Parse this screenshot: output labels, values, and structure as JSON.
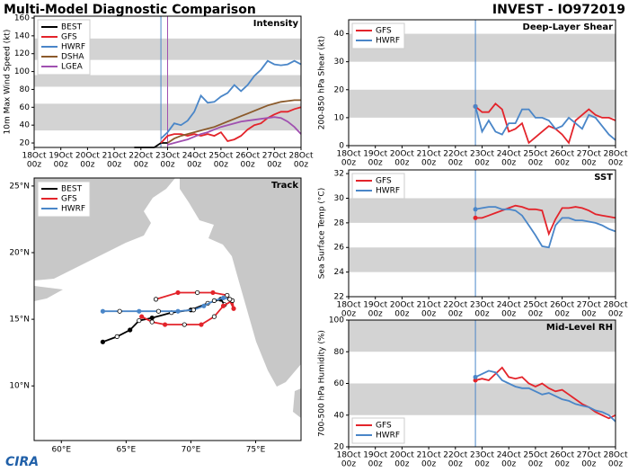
{
  "title": "Multi-Model Diagnostic Comparison",
  "storm": "INVEST - IO972019",
  "logo": "CIRA",
  "chart_data": [
    {
      "type": "line",
      "title": "Intensity",
      "ylabel": "10m Max Wind Speed (kt)",
      "legend": "upper left",
      "grid": false,
      "x": [
        "21Oct 18z",
        "22Oct 00z",
        "22Oct 06z",
        "22Oct 12z",
        "22Oct 18z",
        "23Oct 00z",
        "23Oct 06z",
        "23Oct 12z",
        "23Oct 18z",
        "24Oct 00z",
        "24Oct 06z",
        "24Oct 12z",
        "24Oct 18z",
        "25Oct 00z",
        "25Oct 06z",
        "25Oct 12z",
        "25Oct 18z",
        "26Oct 00z",
        "26Oct 06z",
        "26Oct 12z",
        "26Oct 18z",
        "27Oct 00z",
        "27Oct 06z",
        "27Oct 12z",
        "27Oct 18z",
        "28Oct 00z"
      ],
      "series": [
        {
          "name": "BEST",
          "color": "#000000",
          "values": [
            15,
            15,
            15,
            15,
            20,
            20,
            null,
            null,
            null,
            null,
            null,
            null,
            null,
            null,
            null,
            null,
            null,
            null,
            null,
            null,
            null,
            null,
            null,
            null,
            null,
            null
          ]
        },
        {
          "name": "GFS",
          "color": "#e3242b",
          "values": [
            null,
            null,
            null,
            null,
            20,
            28,
            30,
            30,
            28,
            30,
            28,
            30,
            28,
            32,
            22,
            24,
            28,
            35,
            40,
            42,
            48,
            52,
            55,
            55,
            58,
            60
          ]
        },
        {
          "name": "HWRF",
          "color": "#4a86c8",
          "values": [
            null,
            null,
            null,
            null,
            25,
            32,
            42,
            40,
            45,
            55,
            73,
            65,
            66,
            72,
            76,
            85,
            78,
            85,
            95,
            102,
            112,
            108,
            107,
            108,
            112,
            108
          ]
        },
        {
          "name": "DSHA",
          "color": "#8b5a2b",
          "values": [
            null,
            null,
            null,
            null,
            null,
            20,
            25,
            28,
            30,
            32,
            34,
            36,
            38,
            41,
            44,
            47,
            50,
            53,
            56,
            59,
            62,
            64,
            66,
            67,
            68,
            68
          ]
        },
        {
          "name": "LGEA",
          "color": "#a050b0",
          "values": [
            null,
            null,
            null,
            null,
            null,
            18,
            20,
            22,
            24,
            27,
            30,
            32,
            35,
            38,
            40,
            42,
            44,
            45,
            46,
            47,
            48,
            49,
            48,
            44,
            38,
            30
          ]
        }
      ],
      "vlines": [
        {
          "x": "22Oct 18z",
          "color": "#4a86c8"
        },
        {
          "x": "23Oct 00z",
          "color": "#a050b0"
        }
      ],
      "bands": [
        [
          34,
          64
        ],
        [
          83,
          96
        ],
        [
          113,
          137
        ]
      ],
      "xlim": [
        "18Oct 00z",
        "28Oct 00z"
      ],
      "xticks": [
        [
          "18Oct",
          "00z"
        ],
        [
          "19Oct",
          "00z"
        ],
        [
          "20Oct",
          "00z"
        ],
        [
          "21Oct",
          "00z"
        ],
        [
          "22Oct",
          "00z"
        ],
        [
          "23Oct",
          "00z"
        ],
        [
          "24Oct",
          "00z"
        ],
        [
          "25Oct",
          "00z"
        ],
        [
          "26Oct",
          "00z"
        ],
        [
          "27Oct",
          "00z"
        ],
        [
          "28Oct",
          "00z"
        ]
      ],
      "ylim": [
        15,
        162
      ],
      "yticks": [
        20,
        40,
        60,
        80,
        100,
        120,
        140,
        160
      ]
    },
    {
      "type": "track",
      "title": "Track",
      "legend": "upper left",
      "series": [
        {
          "name": "BEST",
          "color": "#000000",
          "lon": [
            63.2,
            64.3,
            65.3,
            66.0,
            67.0,
            68.5,
            70.0,
            71.3,
            72.3,
            72.6
          ],
          "lat": [
            13.3,
            13.7,
            14.2,
            14.9,
            15.1,
            15.5,
            15.7,
            16.2,
            16.5,
            16.1
          ]
        },
        {
          "name": "GFS",
          "color": "#e3242b",
          "lon": [
            66.2,
            67.0,
            68.0,
            69.5,
            70.8,
            71.8,
            72.5,
            73.2,
            73.3,
            72.8,
            71.7,
            70.5,
            69.0,
            67.3
          ],
          "lat": [
            15.2,
            14.8,
            14.6,
            14.6,
            14.6,
            15.2,
            16.0,
            16.4,
            15.8,
            16.8,
            17.0,
            17.0,
            17.0,
            16.5
          ]
        },
        {
          "name": "HWRF",
          "color": "#4a86c8",
          "lon": [
            63.2,
            64.5,
            66.0,
            67.5,
            69.0,
            70.2,
            71.0,
            71.8,
            72.5,
            73.0
          ],
          "lat": [
            15.6,
            15.6,
            15.6,
            15.6,
            15.6,
            15.7,
            16.0,
            16.4,
            16.6,
            16.5
          ]
        }
      ],
      "xlim": [
        57.9,
        78.5
      ],
      "ylim": [
        5.9,
        25.6
      ],
      "xticks": [
        {
          "value": 60,
          "label": "60°E"
        },
        {
          "value": 65,
          "label": "65°E"
        },
        {
          "value": 70,
          "label": "70°E"
        },
        {
          "value": 75,
          "label": "75°E"
        }
      ],
      "yticks": [
        {
          "value": 10,
          "label": "10°N"
        },
        {
          "value": 15,
          "label": "15°N"
        },
        {
          "value": 20,
          "label": "20°N"
        },
        {
          "value": 25,
          "label": "25°N"
        }
      ]
    },
    {
      "type": "line",
      "title": "Deep-Layer Shear",
      "ylabel": "200-850 hPa Shear (kt)",
      "legend": "upper left",
      "x": [
        "22Oct 18z",
        "23Oct 00z",
        "23Oct 06z",
        "23Oct 12z",
        "23Oct 18z",
        "24Oct 00z",
        "24Oct 06z",
        "24Oct 12z",
        "24Oct 18z",
        "25Oct 00z",
        "25Oct 06z",
        "25Oct 12z",
        "25Oct 18z",
        "26Oct 00z",
        "26Oct 06z",
        "26Oct 12z",
        "26Oct 18z",
        "27Oct 00z",
        "27Oct 06z",
        "27Oct 12z",
        "27Oct 18z",
        "28Oct 00z"
      ],
      "series": [
        {
          "name": "GFS",
          "color": "#e3242b",
          "values": [
            14,
            12,
            12,
            15,
            13,
            5,
            6,
            8,
            1,
            3,
            5,
            7,
            6,
            4,
            1,
            9,
            11,
            13,
            11,
            10,
            10,
            9
          ]
        },
        {
          "name": "HWRF",
          "color": "#4a86c8",
          "values": [
            14,
            5,
            9,
            5,
            4,
            8,
            8,
            13,
            13,
            10,
            10,
            9,
            6,
            7,
            10,
            8,
            6,
            11,
            10,
            7,
            4,
            2
          ]
        }
      ],
      "vlines": [
        {
          "x": "22Oct 18z",
          "color": "#4a86c8"
        }
      ],
      "bands": [
        [
          10,
          20
        ],
        [
          30,
          40
        ]
      ],
      "xlim": [
        "18Oct 00z",
        "28Oct 00z"
      ],
      "xticks": [
        [
          "18Oct",
          "00z"
        ],
        [
          "19Oct",
          "00z"
        ],
        [
          "20Oct",
          "00z"
        ],
        [
          "21Oct",
          "00z"
        ],
        [
          "22Oct",
          "00z"
        ],
        [
          "23Oct",
          "00z"
        ],
        [
          "24Oct",
          "00z"
        ],
        [
          "25Oct",
          "00z"
        ],
        [
          "26Oct",
          "00z"
        ],
        [
          "27Oct",
          "00z"
        ],
        [
          "28Oct",
          "00z"
        ]
      ],
      "ylim": [
        0,
        45
      ],
      "yticks": [
        0,
        10,
        20,
        30,
        40
      ]
    },
    {
      "type": "line",
      "title": "SST",
      "ylabel": "Sea Surface Temp (°C)",
      "legend": "upper left",
      "x": [
        "22Oct 18z",
        "23Oct 00z",
        "23Oct 06z",
        "23Oct 12z",
        "23Oct 18z",
        "24Oct 00z",
        "24Oct 06z",
        "24Oct 12z",
        "24Oct 18z",
        "25Oct 00z",
        "25Oct 06z",
        "25Oct 12z",
        "25Oct 18z",
        "26Oct 00z",
        "26Oct 06z",
        "26Oct 12z",
        "26Oct 18z",
        "27Oct 00z",
        "27Oct 06z",
        "27Oct 12z",
        "27Oct 18z",
        "28Oct 00z"
      ],
      "series": [
        {
          "name": "GFS",
          "color": "#e3242b",
          "values": [
            28.4,
            28.4,
            28.6,
            28.8,
            29.0,
            29.2,
            29.4,
            29.3,
            29.1,
            29.1,
            29.0,
            27.1,
            28.3,
            29.2,
            29.2,
            29.3,
            29.2,
            29.0,
            28.7,
            28.6,
            28.5,
            28.4
          ]
        },
        {
          "name": "HWRF",
          "color": "#4a86c8",
          "values": [
            29.1,
            29.2,
            29.3,
            29.3,
            29.1,
            29.1,
            29.0,
            28.6,
            27.8,
            27.0,
            26.1,
            26.0,
            27.8,
            28.4,
            28.4,
            28.2,
            28.2,
            28.1,
            28.0,
            27.8,
            27.5,
            27.3
          ]
        }
      ],
      "vlines": [
        {
          "x": "22Oct 18z",
          "color": "#4a86c8"
        }
      ],
      "bands": [
        [
          24,
          26
        ],
        [
          28,
          30
        ]
      ],
      "xlim": [
        "18Oct 00z",
        "28Oct 00z"
      ],
      "xticks": [
        [
          "18Oct",
          "00z"
        ],
        [
          "19Oct",
          "00z"
        ],
        [
          "20Oct",
          "00z"
        ],
        [
          "21Oct",
          "00z"
        ],
        [
          "22Oct",
          "00z"
        ],
        [
          "23Oct",
          "00z"
        ],
        [
          "24Oct",
          "00z"
        ],
        [
          "25Oct",
          "00z"
        ],
        [
          "26Oct",
          "00z"
        ],
        [
          "27Oct",
          "00z"
        ],
        [
          "28Oct",
          "00z"
        ]
      ],
      "ylim": [
        22,
        32.3
      ],
      "yticks": [
        22,
        24,
        26,
        28,
        30,
        32
      ]
    },
    {
      "type": "line",
      "title": "Mid-Level RH",
      "ylabel": "700-500 hPa Humidity (%)",
      "legend": "lower left",
      "x": [
        "22Oct 18z",
        "23Oct 00z",
        "23Oct 06z",
        "23Oct 12z",
        "23Oct 18z",
        "24Oct 00z",
        "24Oct 06z",
        "24Oct 12z",
        "24Oct 18z",
        "25Oct 00z",
        "25Oct 06z",
        "25Oct 12z",
        "25Oct 18z",
        "26Oct 00z",
        "26Oct 06z",
        "26Oct 12z",
        "26Oct 18z",
        "27Oct 00z",
        "27Oct 06z",
        "27Oct 12z",
        "27Oct 18z",
        "28Oct 00z"
      ],
      "series": [
        {
          "name": "GFS",
          "color": "#e3242b",
          "values": [
            62,
            63,
            62,
            66,
            70,
            64,
            63,
            64,
            60,
            58,
            60,
            57,
            55,
            56,
            53,
            50,
            47,
            45,
            42,
            40,
            38,
            40
          ]
        },
        {
          "name": "HWRF",
          "color": "#4a86c8",
          "values": [
            64,
            66,
            68,
            67,
            62,
            60,
            58,
            57,
            57,
            55,
            53,
            54,
            52,
            50,
            49,
            47,
            46,
            45,
            43,
            42,
            40,
            36
          ]
        }
      ],
      "vlines": [
        {
          "x": "22Oct 18z",
          "color": "#4a86c8"
        }
      ],
      "bands": [
        [
          40,
          60
        ],
        [
          80,
          100
        ]
      ],
      "xlim": [
        "18Oct 00z",
        "28Oct 00z"
      ],
      "xticks": [
        [
          "18Oct",
          "00z"
        ],
        [
          "19Oct",
          "00z"
        ],
        [
          "20Oct",
          "00z"
        ],
        [
          "21Oct",
          "00z"
        ],
        [
          "22Oct",
          "00z"
        ],
        [
          "23Oct",
          "00z"
        ],
        [
          "24Oct",
          "00z"
        ],
        [
          "25Oct",
          "00z"
        ],
        [
          "26Oct",
          "00z"
        ],
        [
          "27Oct",
          "00z"
        ],
        [
          "28Oct",
          "00z"
        ]
      ],
      "ylim": [
        20,
        100
      ],
      "yticks": [
        20,
        40,
        60,
        80,
        100
      ]
    }
  ]
}
